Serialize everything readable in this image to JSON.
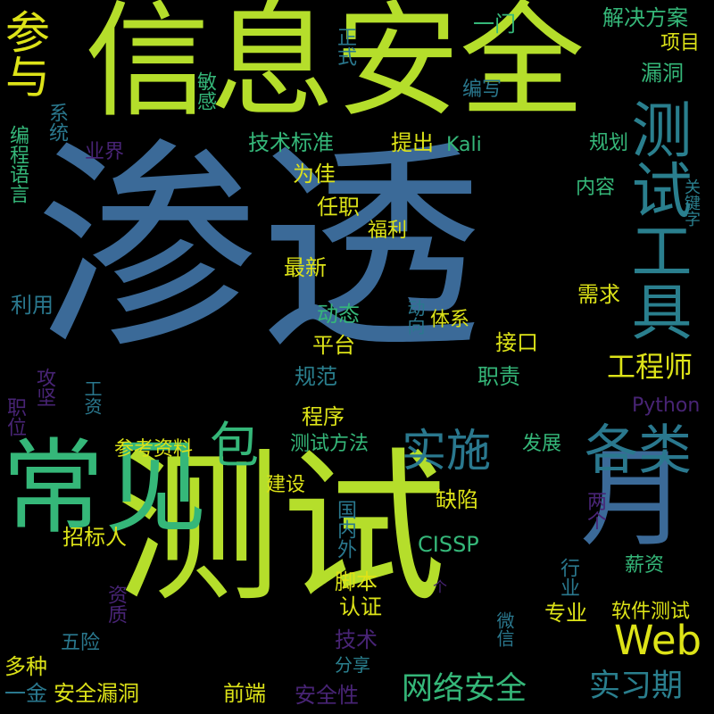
{
  "words": [
    {
      "text": "渗透",
      "color": "#3b6a98",
      "rot": "h"
    },
    {
      "text": "测试",
      "color": "#b5de2b",
      "rot": "h"
    },
    {
      "text": "信息安全",
      "color": "#b5de2b",
      "rot": "h"
    },
    {
      "text": "常见",
      "color": "#35b779",
      "rot": "h"
    },
    {
      "text": "测试工具",
      "color": "#2a7f8e",
      "rot": "v"
    },
    {
      "text": "月",
      "color": "#3b6a98",
      "rot": "h"
    },
    {
      "text": "各类",
      "color": "#2a788e",
      "rot": "h"
    },
    {
      "text": "参与",
      "color": "#dde318",
      "rot": "v"
    },
    {
      "text": "包",
      "color": "#35b779",
      "rot": "h"
    },
    {
      "text": "实施",
      "color": "#2a788e",
      "rot": "h"
    },
    {
      "text": "Web",
      "color": "#dde318",
      "rot": "h"
    },
    {
      "text": "工程师",
      "color": "#dde318",
      "rot": "h"
    },
    {
      "text": "实习期",
      "color": "#2a7f8e",
      "rot": "h"
    },
    {
      "text": "网络安全",
      "color": "#35b779",
      "rot": "h"
    },
    {
      "text": "解决方案",
      "color": "#35b779",
      "rot": "h"
    },
    {
      "text": "项目",
      "color": "#dde318",
      "rot": "h"
    },
    {
      "text": "漏洞",
      "color": "#35b779",
      "rot": "h"
    },
    {
      "text": "一门",
      "color": "#35b779",
      "rot": "h"
    },
    {
      "text": "正式",
      "color": "#2a788e",
      "rot": "v"
    },
    {
      "text": "敏感",
      "color": "#35b779",
      "rot": "v"
    },
    {
      "text": "编写",
      "color": "#2a788e",
      "rot": "h"
    },
    {
      "text": "系统",
      "color": "#2a788e",
      "rot": "v"
    },
    {
      "text": "编程语言",
      "color": "#35b779",
      "rot": "v"
    },
    {
      "text": "技术标准",
      "color": "#35b779",
      "rot": "h"
    },
    {
      "text": "提出",
      "color": "#dde318",
      "rot": "h"
    },
    {
      "text": "Kali",
      "color": "#35b779",
      "rot": "h"
    },
    {
      "text": "规划",
      "color": "#35b779",
      "rot": "h"
    },
    {
      "text": "业界",
      "color": "#482475",
      "rot": "h"
    },
    {
      "text": "为佳",
      "color": "#dde318",
      "rot": "h"
    },
    {
      "text": "内容",
      "color": "#35b779",
      "rot": "h"
    },
    {
      "text": "关键字",
      "color": "#2a7f8e",
      "rot": "v"
    },
    {
      "text": "任职",
      "color": "#dde318",
      "rot": "h"
    },
    {
      "text": "福利",
      "color": "#dde318",
      "rot": "h"
    },
    {
      "text": "最新",
      "color": "#dde318",
      "rot": "h"
    },
    {
      "text": "需求",
      "color": "#dde318",
      "rot": "h"
    },
    {
      "text": "利用",
      "color": "#2a788e",
      "rot": "h"
    },
    {
      "text": "动态",
      "color": "#35b779",
      "rot": "h"
    },
    {
      "text": "动向",
      "color": "#2a788e",
      "rot": "v"
    },
    {
      "text": "体系",
      "color": "#dde318",
      "rot": "h"
    },
    {
      "text": "平台",
      "color": "#dde318",
      "rot": "h"
    },
    {
      "text": "接口",
      "color": "#dde318",
      "rot": "h"
    },
    {
      "text": "攻坚",
      "color": "#482475",
      "rot": "v"
    },
    {
      "text": "职位",
      "color": "#482475",
      "rot": "v"
    },
    {
      "text": "工资",
      "color": "#2a788e",
      "rot": "v"
    },
    {
      "text": "规范",
      "color": "#2a7f8e",
      "rot": "h"
    },
    {
      "text": "职责",
      "color": "#35b779",
      "rot": "h"
    },
    {
      "text": "Python",
      "color": "#482475",
      "rot": "h"
    },
    {
      "text": "程序",
      "color": "#dde318",
      "rot": "h"
    },
    {
      "text": "参考资料",
      "color": "#dde318",
      "rot": "h"
    },
    {
      "text": "测试方法",
      "color": "#35b779",
      "rot": "h"
    },
    {
      "text": "发展",
      "color": "#35b779",
      "rot": "h"
    },
    {
      "text": "建设",
      "color": "#dde318",
      "rot": "h"
    },
    {
      "text": "缺陷",
      "color": "#dde318",
      "rot": "h"
    },
    {
      "text": "国内外",
      "color": "#2a788e",
      "rot": "v"
    },
    {
      "text": "两个",
      "color": "#482475",
      "rot": "v"
    },
    {
      "text": "招标人",
      "color": "#dde318",
      "rot": "h"
    },
    {
      "text": "CISSP",
      "color": "#35b779",
      "rot": "h"
    },
    {
      "text": "行业",
      "color": "#2a788e",
      "rot": "v"
    },
    {
      "text": "薪资",
      "color": "#35b779",
      "rot": "h"
    },
    {
      "text": "脚本",
      "color": "#dde318",
      "rot": "h"
    },
    {
      "text": "个",
      "color": "#482475",
      "rot": "h"
    },
    {
      "text": "资质",
      "color": "#482475",
      "rot": "v"
    },
    {
      "text": "认证",
      "color": "#dde318",
      "rot": "h"
    },
    {
      "text": "专业",
      "color": "#dde318",
      "rot": "h"
    },
    {
      "text": "微信",
      "color": "#2a788e",
      "rot": "v"
    },
    {
      "text": "软件测试",
      "color": "#dde318",
      "rot": "h"
    },
    {
      "text": "五险",
      "color": "#2a788e",
      "rot": "h"
    },
    {
      "text": "技术",
      "color": "#482475",
      "rot": "h"
    },
    {
      "text": "多种",
      "color": "#dde318",
      "rot": "h"
    },
    {
      "text": "分享",
      "color": "#2a7f8e",
      "rot": "h"
    },
    {
      "text": "一金",
      "color": "#2a788e",
      "rot": "h"
    },
    {
      "text": "安全漏洞",
      "color": "#dde318",
      "rot": "h"
    },
    {
      "text": "前端",
      "color": "#dde318",
      "rot": "h"
    },
    {
      "text": "安全性",
      "color": "#482475",
      "rot": "h"
    }
  ]
}
